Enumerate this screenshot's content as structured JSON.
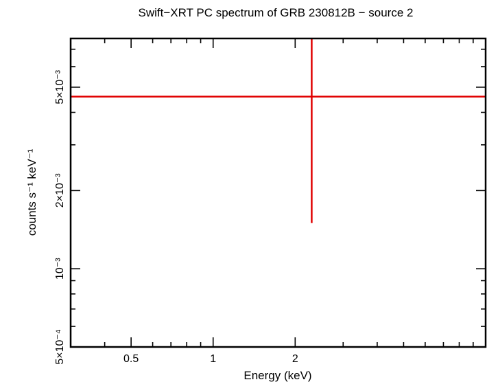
{
  "chart_data": {
    "type": "scatter",
    "title": "Swift−XRT PC spectrum of GRB 230812B − source 2",
    "xlabel": "Energy (keV)",
    "ylabel": "counts s⁻¹ keV⁻¹",
    "x_scale": "log",
    "y_scale": "log",
    "xlim": [
      0.3,
      10
    ],
    "ylim": [
      0.0005,
      0.0077
    ],
    "x_ticks": [
      {
        "value": 0.5,
        "label": "0.5"
      },
      {
        "value": 1,
        "label": "1"
      },
      {
        "value": 2,
        "label": "2"
      }
    ],
    "y_ticks": [
      {
        "value": 0.0005,
        "label": "5×10⁻⁴"
      },
      {
        "value": 0.001,
        "label": "10⁻³"
      },
      {
        "value": 0.002,
        "label": "2×10⁻³"
      },
      {
        "value": 0.005,
        "label": "5×10⁻³"
      }
    ],
    "series": [
      {
        "color": "#e00000",
        "points": [
          {
            "x": 2.3,
            "y": 0.0046,
            "x_err": [
              0.3,
              10
            ],
            "y_err": [
              0.0015,
              0.0077
            ]
          }
        ]
      }
    ]
  }
}
